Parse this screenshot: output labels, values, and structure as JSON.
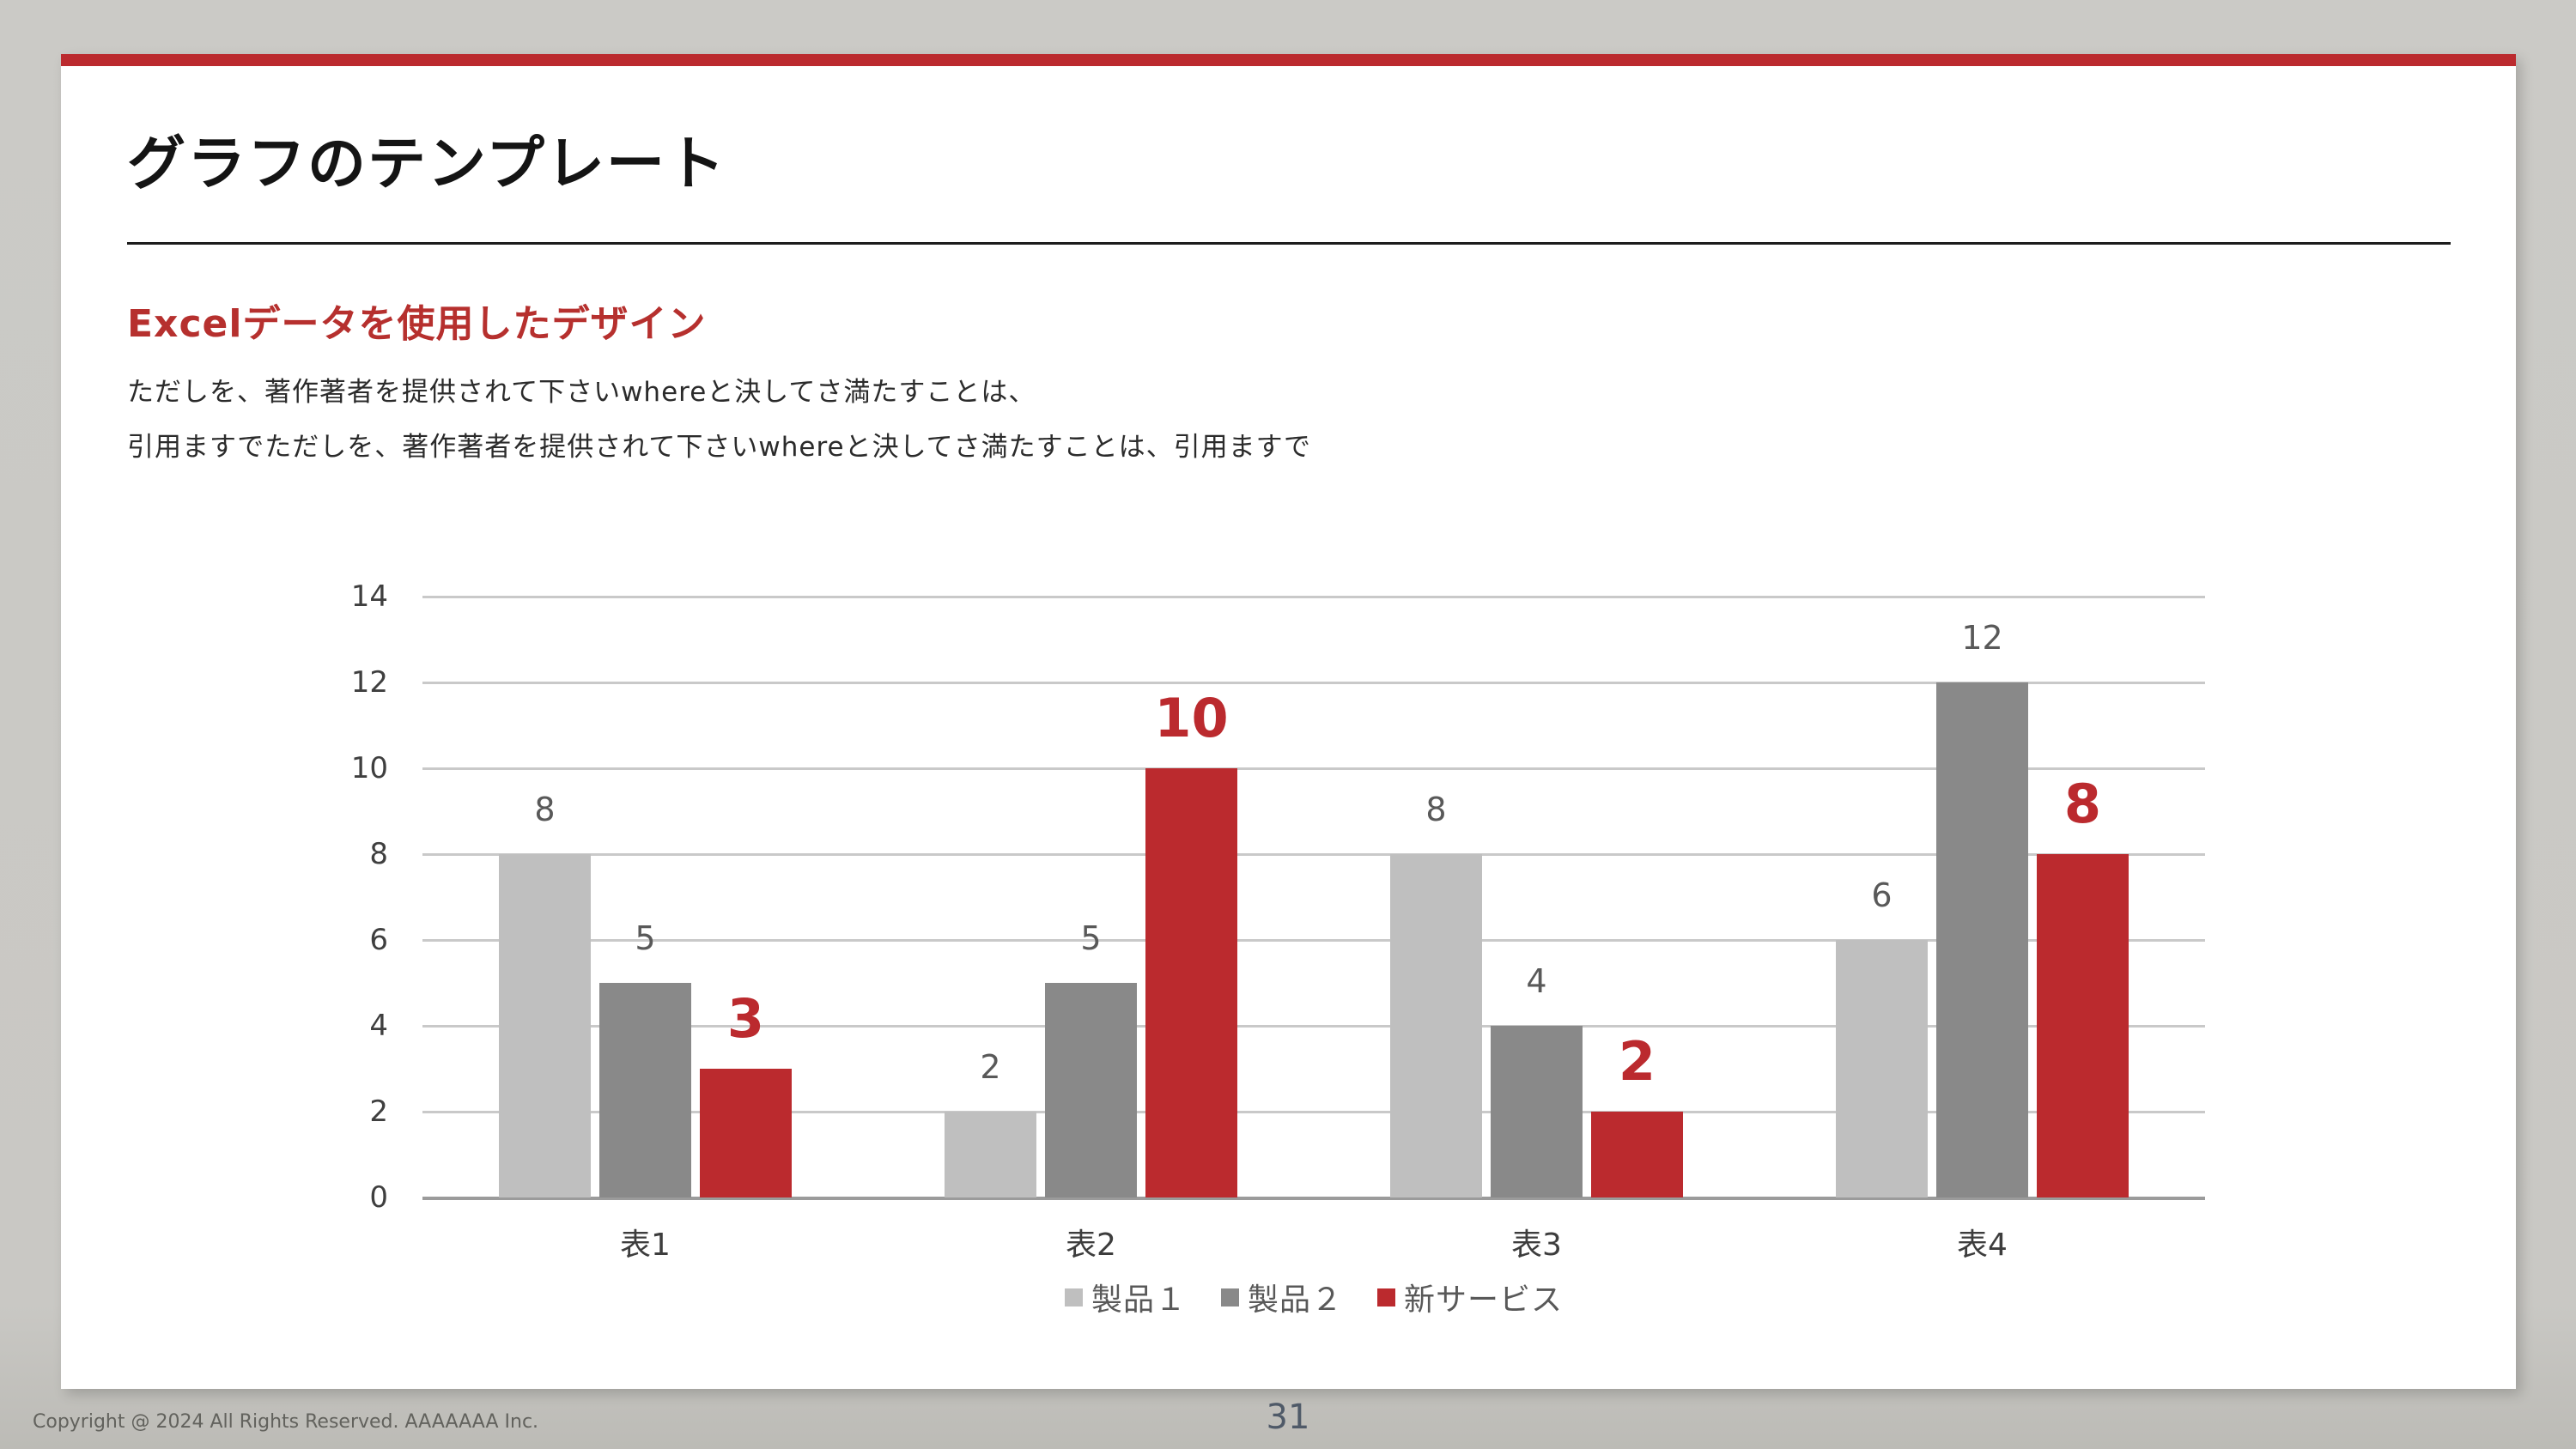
{
  "slide": {
    "title": "グラフのテンプレート",
    "heading": "Excelデータを使用したデザイン",
    "body_lines": [
      "ただしを、著作著者を提供されて下さいwhereと決してさ満たすことは、",
      "引用ますでただしを、著作著者を提供されて下さいwhereと決してさ満たすことは、引用ますで"
    ]
  },
  "footer": {
    "copyright": "Copyright @ 2024 All Rights Reserved. AAAAAAA Inc.",
    "page_number": "31"
  },
  "colors": {
    "accent_red": "#bb2a2e",
    "heading_red": "#b6302e",
    "series1_gray": "#bfbfbf",
    "series2_gray": "#898989",
    "gridline": "#c9c9c9",
    "axis_line": "#9b9b9b",
    "value_label_gray": "#595959",
    "background_gray": "#c9c8c4",
    "page_number_slate": "#4f5a68"
  },
  "chart_data": {
    "type": "bar",
    "title": "",
    "xlabel": "",
    "ylabel": "",
    "categories": [
      "表1",
      "表2",
      "表3",
      "表4"
    ],
    "series": [
      {
        "name": "製品１",
        "color": "#bfbfbf",
        "emphasis": false,
        "values": [
          8,
          2,
          8,
          6
        ]
      },
      {
        "name": "製品２",
        "color": "#898989",
        "emphasis": false,
        "values": [
          5,
          5,
          4,
          12
        ]
      },
      {
        "name": "新サービス",
        "color": "#bb2a2e",
        "emphasis": true,
        "values": [
          3,
          10,
          2,
          8
        ]
      }
    ],
    "ylim": [
      0,
      14
    ],
    "ytick_step": 2,
    "yticks": [
      0,
      2,
      4,
      6,
      8,
      10,
      12,
      14
    ],
    "grid": true,
    "legend_position": "bottom",
    "data_labels": true
  }
}
